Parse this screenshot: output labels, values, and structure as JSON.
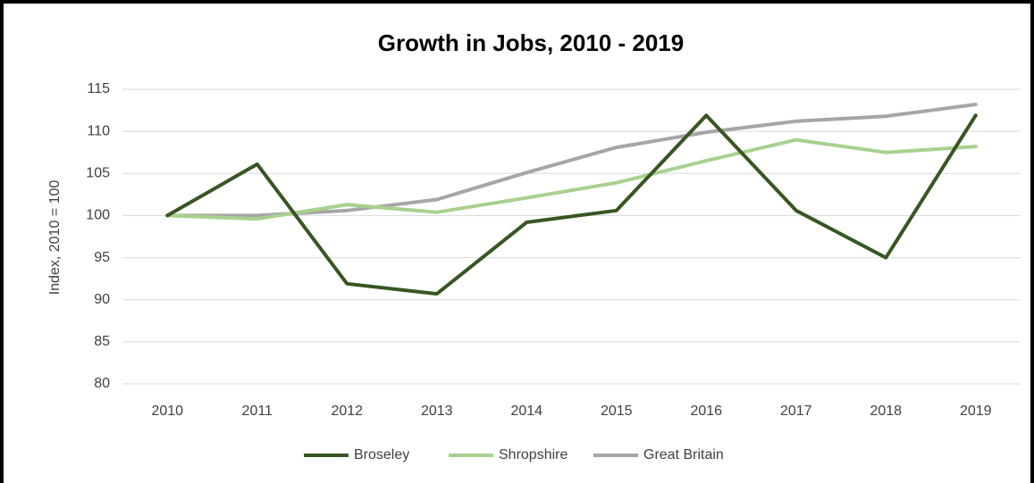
{
  "chart_data": {
    "type": "line",
    "title": "Growth in Jobs, 2010 - 2019",
    "y_label": "Index, 2010 = 100",
    "categories": [
      "2010",
      "2011",
      "2012",
      "2013",
      "2014",
      "2015",
      "2016",
      "2017",
      "2018",
      "2019"
    ],
    "series": [
      {
        "name": "Broseley",
        "color": "#375623",
        "values": [
          100,
          106.1,
          91.9,
          90.7,
          99.2,
          100.6,
          111.9,
          100.6,
          95.0,
          111.9
        ]
      },
      {
        "name": "Shropshire",
        "color": "#a9d18e",
        "values": [
          100,
          99.6,
          101.3,
          100.4,
          102.1,
          103.9,
          106.5,
          109.0,
          107.5,
          108.2
        ]
      },
      {
        "name": "Great Britain",
        "color": "#a6a6a6",
        "values": [
          100,
          100.0,
          100.6,
          101.9,
          105.1,
          108.1,
          109.9,
          111.2,
          111.8,
          113.2
        ]
      }
    ],
    "ylim": [
      80,
      115
    ],
    "yticks": [
      80,
      85,
      90,
      95,
      100,
      105,
      110,
      115
    ],
    "grid": true,
    "legend": "bottom"
  }
}
